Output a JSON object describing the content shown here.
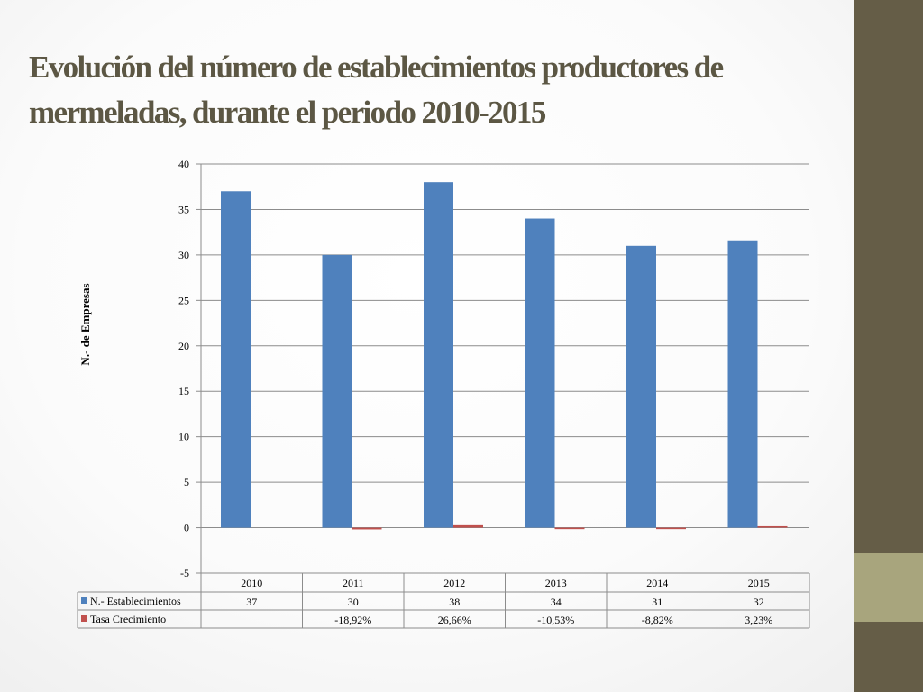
{
  "title": {
    "line1": "Evolución del número de establecimientos productores de",
    "line2": "mermeladas, durante  el periodo 2010-2015"
  },
  "colors": {
    "series1": "#4f81bd",
    "series2": "#c0504d",
    "title_text": "#5c5744",
    "side_bar": "#655d47",
    "side_accent": "#a8a57d"
  },
  "chart_data": {
    "type": "bar",
    "title": "",
    "xlabel": "",
    "ylabel": "N.- de Empresas",
    "ylim": [
      -5,
      40
    ],
    "yticks": [
      "40",
      "35",
      "30",
      "25",
      "20",
      "15",
      "10",
      "5",
      "0",
      "-5"
    ],
    "ytick_values": [
      40,
      35,
      30,
      25,
      20,
      15,
      10,
      5,
      0,
      -5
    ],
    "grid": true,
    "categories": [
      "2010",
      "2011",
      "2012",
      "2013",
      "2014",
      "2015"
    ],
    "series": [
      {
        "name": "N.- Establecimientos",
        "values": [
          37,
          30,
          38,
          34,
          31,
          31.6
        ],
        "table_labels": [
          "37",
          "30",
          "38",
          "34",
          "31",
          "32"
        ]
      },
      {
        "name": "Tasa Crecimiento",
        "values": [
          null,
          -0.1892,
          0.2666,
          -0.1053,
          -0.0882,
          0.0323
        ],
        "table_labels": [
          "",
          "-18,92%",
          "26,66%",
          "-10,53%",
          "-8,82%",
          "3,23%"
        ]
      }
    ]
  }
}
